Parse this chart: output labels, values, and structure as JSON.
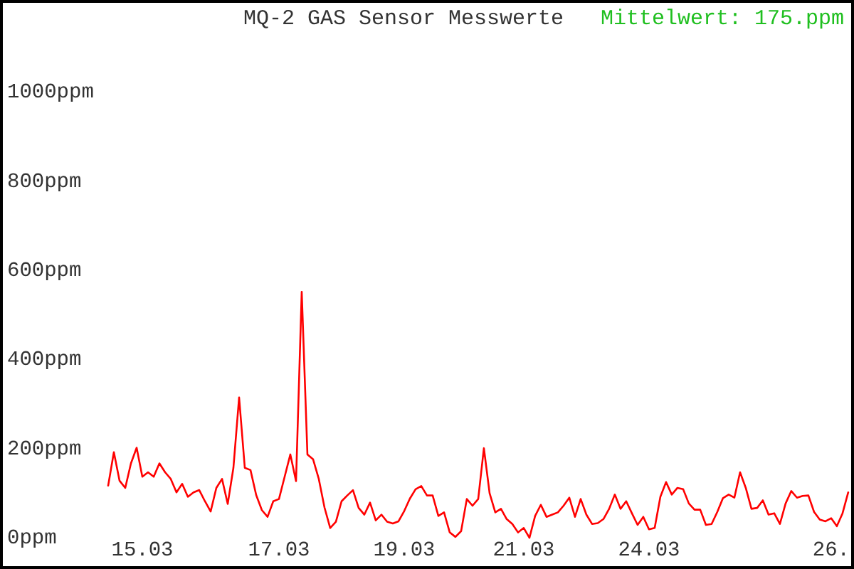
{
  "chart_data": {
    "type": "line",
    "title": "MQ-2 GAS Sensor Messwerte",
    "annotations": [
      "Mittelwert: 175.ppm"
    ],
    "categories": [
      null,
      null,
      null,
      null,
      null,
      null,
      "15.03",
      null,
      null,
      null,
      null,
      null,
      null,
      null,
      null,
      null,
      null,
      null,
      null,
      null,
      null,
      null,
      null,
      null,
      null,
      null,
      null,
      null,
      null,
      null,
      "17.03",
      null,
      null,
      null,
      null,
      null,
      null,
      null,
      null,
      null,
      null,
      null,
      null,
      null,
      null,
      null,
      null,
      null,
      null,
      null,
      null,
      null,
      "19.03",
      null,
      null,
      null,
      null,
      null,
      null,
      null,
      null,
      null,
      null,
      null,
      null,
      null,
      null,
      null,
      null,
      null,
      null,
      null,
      null,
      "21.03",
      null,
      null,
      null,
      null,
      null,
      null,
      null,
      null,
      null,
      null,
      null,
      null,
      null,
      null,
      null,
      null,
      null,
      null,
      null,
      null,
      null,
      "24.03",
      null,
      null,
      null,
      null,
      null,
      null,
      null,
      null,
      null,
      null,
      null,
      null,
      null,
      null,
      null,
      null,
      null,
      null,
      null,
      null,
      null,
      null,
      null,
      null,
      null,
      null,
      null,
      null,
      null,
      null,
      null,
      "26.",
      null,
      null,
      null
    ],
    "values": [
      120,
      195,
      131,
      115,
      170,
      205,
      140,
      150,
      140,
      170,
      150,
      135,
      105,
      124,
      95,
      105,
      110,
      85,
      62,
      115,
      135,
      79,
      160,
      318,
      160,
      155,
      99,
      65,
      50,
      85,
      90,
      140,
      190,
      130,
      555,
      190,
      179,
      135,
      71,
      25,
      39,
      85,
      98,
      110,
      70,
      55,
      82,
      42,
      55,
      39,
      35,
      40,
      63,
      91,
      112,
      119,
      98,
      98,
      52,
      60,
      15,
      5,
      18,
      90,
      75,
      90,
      204,
      103,
      60,
      68,
      45,
      34,
      15,
      25,
      3,
      52,
      77,
      50,
      55,
      60,
      75,
      93,
      50,
      90,
      55,
      34,
      36,
      45,
      68,
      100,
      68,
      85,
      58,
      32,
      50,
      22,
      25,
      95,
      128,
      100,
      115,
      112,
      80,
      66,
      66,
      32,
      34,
      61,
      92,
      100,
      93,
      150,
      115,
      68,
      70,
      87,
      55,
      58,
      34,
      80,
      108,
      93,
      97,
      98,
      61,
      44,
      40,
      47,
      29,
      58,
      105
    ],
    "color": "#ff0000",
    "ylim": [
      0,
      1000
    ],
    "yticks": [
      {
        "value": 0,
        "label": "0ppm"
      },
      {
        "value": 200,
        "label": "200ppm"
      },
      {
        "value": 400,
        "label": "400ppm"
      },
      {
        "value": 600,
        "label": "600ppm"
      },
      {
        "value": 800,
        "label": "800ppm"
      },
      {
        "value": 1000,
        "label": "1000ppm"
      }
    ]
  }
}
